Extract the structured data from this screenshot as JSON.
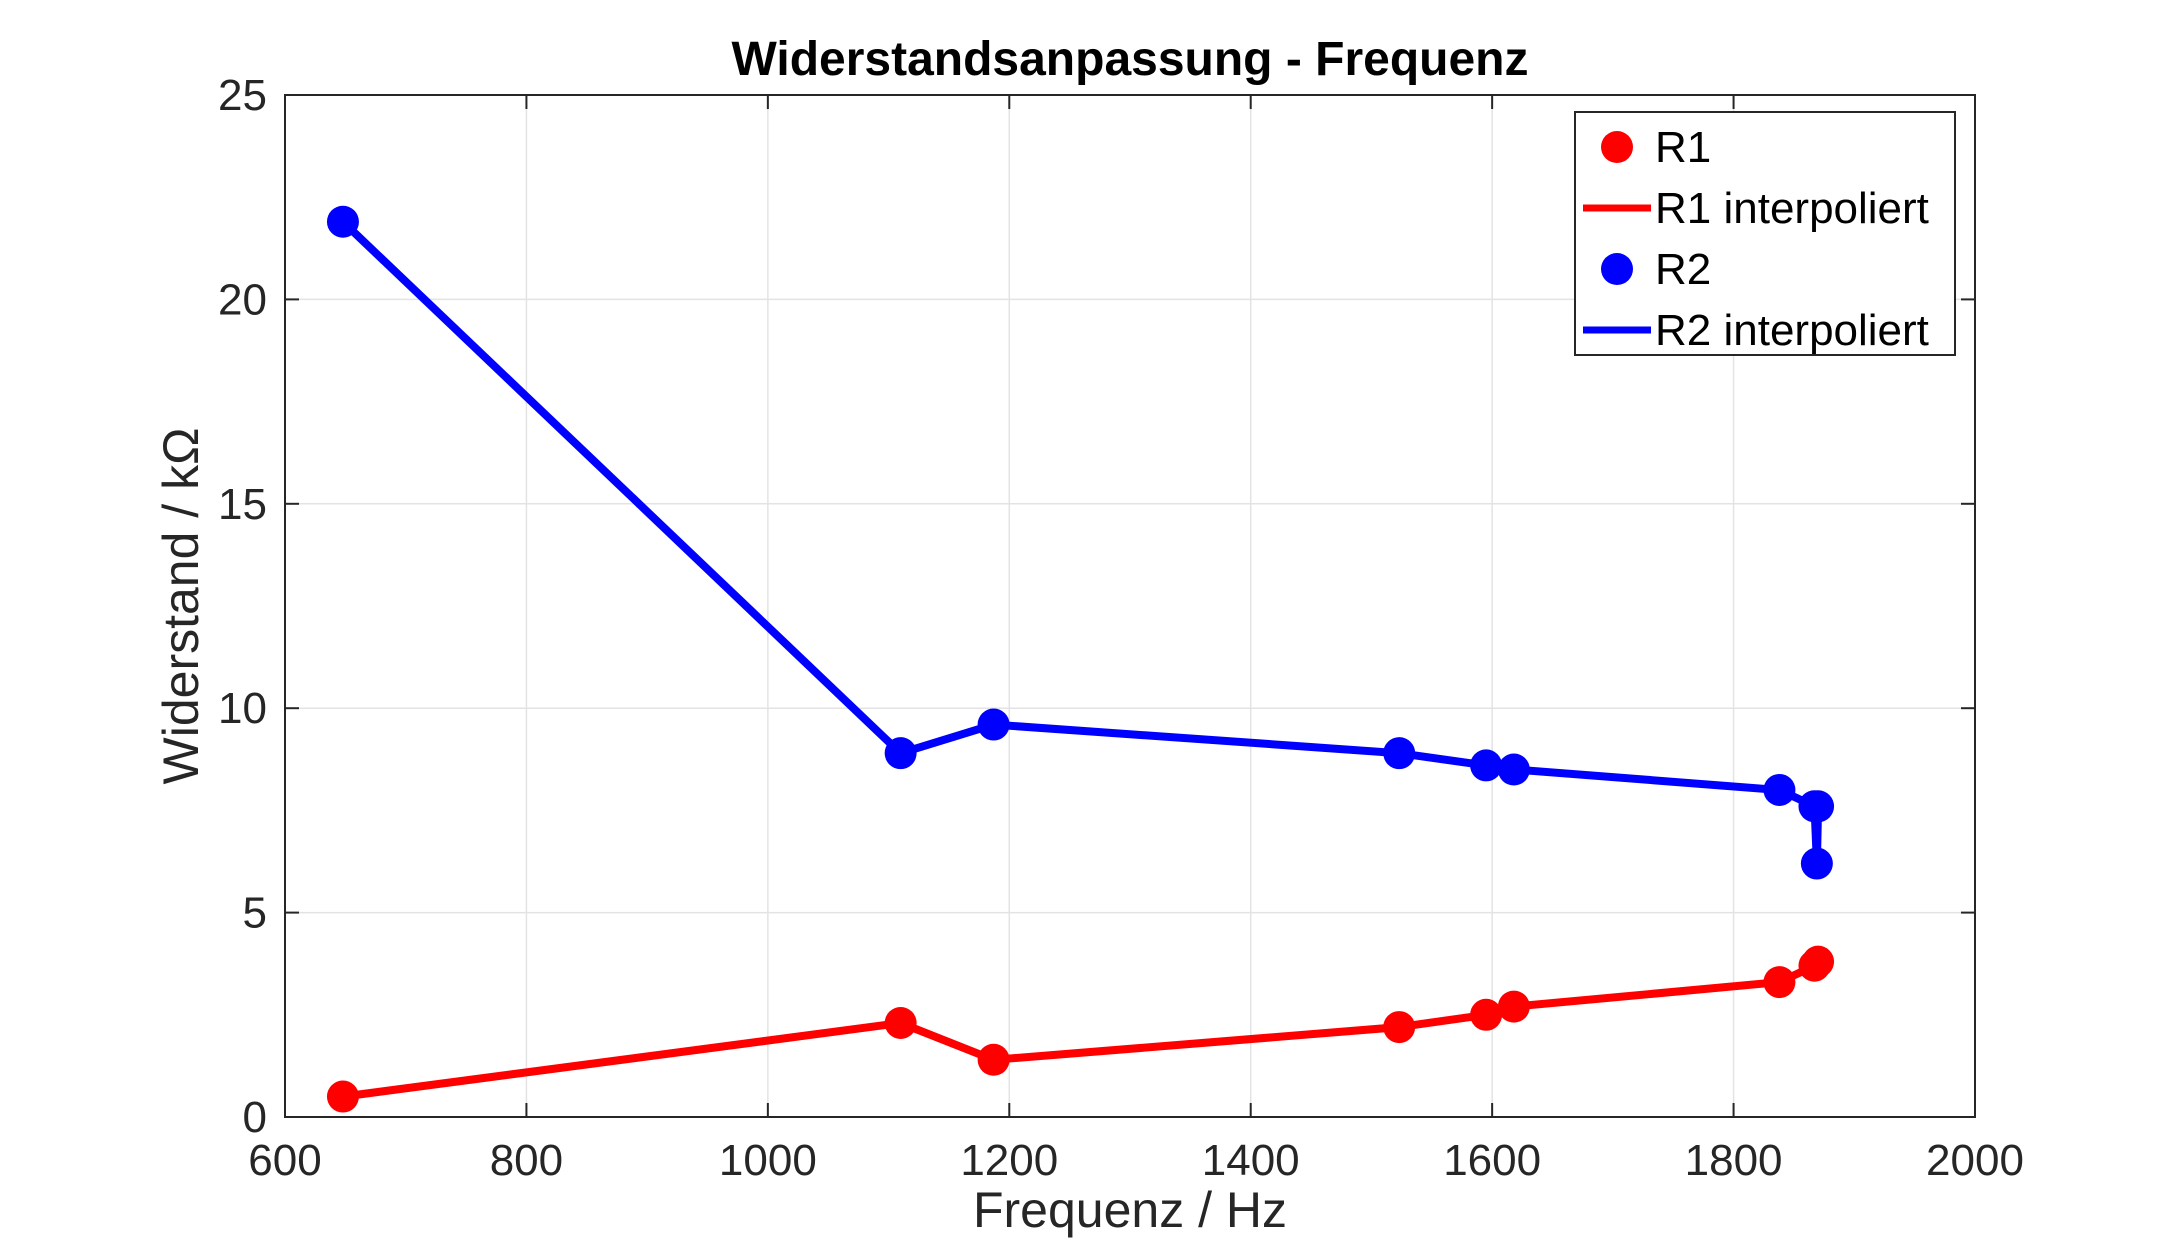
{
  "chart_data": {
    "type": "line",
    "title": "Widerstandsanpassung - Frequenz",
    "xlabel": "Frequenz / Hz",
    "ylabel": "Widerstand / kΩ",
    "xlim": [
      600,
      2000
    ],
    "ylim": [
      0,
      25
    ],
    "xticks": [
      600,
      800,
      1000,
      1200,
      1400,
      1600,
      1800,
      2000
    ],
    "yticks": [
      0,
      5,
      10,
      15,
      20,
      25
    ],
    "xtick_labels": [
      "600",
      "800",
      "1000",
      "1200",
      "1400",
      "1600",
      "1800",
      "2000"
    ],
    "ytick_labels": [
      "0",
      "5",
      "10",
      "15",
      "20",
      "25"
    ],
    "grid": true,
    "legend_position": "top-right",
    "series": [
      {
        "name": "R1",
        "kind": "markers",
        "color": "#ff0000",
        "x": [
          648,
          1110,
          1187,
          1523,
          1595,
          1618,
          1838,
          1867,
          1870
        ],
        "y": [
          0.5,
          2.3,
          1.4,
          2.2,
          2.5,
          2.7,
          3.3,
          3.7,
          3.8
        ]
      },
      {
        "name": "R1 interpoliert",
        "kind": "line",
        "color": "#ff0000",
        "x": [
          648,
          1110,
          1187,
          1523,
          1595,
          1618,
          1838,
          1867,
          1870
        ],
        "y": [
          0.5,
          2.3,
          1.4,
          2.2,
          2.5,
          2.7,
          3.3,
          3.7,
          3.8
        ]
      },
      {
        "name": "R2",
        "kind": "markers",
        "color": "#0000ff",
        "x": [
          648,
          1110,
          1187,
          1523,
          1595,
          1618,
          1838,
          1867,
          1869,
          1870
        ],
        "y": [
          21.9,
          8.9,
          9.6,
          8.9,
          8.6,
          8.5,
          8.0,
          7.6,
          6.2,
          7.6
        ]
      },
      {
        "name": "R2 interpoliert",
        "kind": "line",
        "color": "#0000ff",
        "x": [
          648,
          1110,
          1187,
          1523,
          1595,
          1618,
          1838,
          1867,
          1869,
          1870
        ],
        "y": [
          21.9,
          8.9,
          9.6,
          8.9,
          8.6,
          8.5,
          8.0,
          7.6,
          6.2,
          7.6
        ]
      }
    ]
  }
}
